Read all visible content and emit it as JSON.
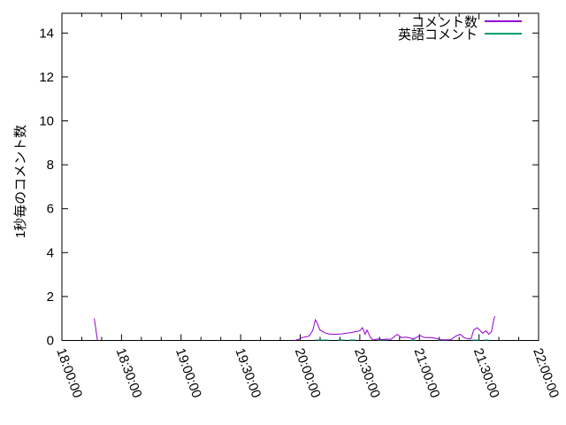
{
  "window": {
    "background": "#ffffff",
    "text_color": "#000000"
  },
  "chart_data": {
    "type": "line",
    "title": "",
    "xlabel": "",
    "ylabel": "1秒毎のコメント数",
    "x_axis": {
      "tick_labels": [
        "18:00:00",
        "18:30:00",
        "19:00:00",
        "19:30:00",
        "20:00:00",
        "20:30:00",
        "21:00:00",
        "21:30:00",
        "22:00:00"
      ],
      "range_minutes": [
        0,
        240
      ],
      "major_step_minutes": 30,
      "minor_step_minutes": 10,
      "label_rotation_deg": 70
    },
    "y_axis": {
      "tick_labels": [
        "0",
        "2",
        "4",
        "6",
        "8",
        "10",
        "12",
        "14"
      ],
      "tick_values": [
        0,
        2,
        4,
        6,
        8,
        10,
        12,
        14
      ],
      "range": [
        0,
        14.9
      ]
    },
    "grid": false,
    "legend_position": "top-right",
    "legend": [
      {
        "label": "コメント数",
        "color": "#9400d3"
      },
      {
        "label": "英語コメント",
        "color": "#009e73"
      }
    ],
    "series": [
      {
        "name": "コメント数",
        "color": "#9400d3",
        "segments": [
          [
            [
              16.3,
              1.0
            ],
            [
              17.9,
              0.0
            ]
          ],
          [
            [
              117.2,
              0.0
            ],
            [
              119.0,
              0.05
            ],
            [
              121.0,
              0.13
            ],
            [
              124.5,
              0.2
            ],
            [
              126.3,
              0.45
            ],
            [
              127.6,
              0.94
            ],
            [
              128.5,
              0.8
            ],
            [
              129.9,
              0.48
            ],
            [
              132.1,
              0.36
            ],
            [
              134.3,
              0.3
            ],
            [
              136.6,
              0.28
            ],
            [
              141.0,
              0.3
            ],
            [
              143.3,
              0.33
            ],
            [
              145.5,
              0.36
            ],
            [
              147.8,
              0.4
            ],
            [
              150.0,
              0.44
            ],
            [
              151.3,
              0.58
            ],
            [
              152.7,
              0.28
            ],
            [
              153.6,
              0.47
            ],
            [
              155.4,
              0.13
            ],
            [
              156.7,
              0.02
            ],
            [
              159.0,
              0.07
            ],
            [
              161.2,
              0.04
            ],
            [
              163.4,
              0.06
            ],
            [
              165.7,
              0.05
            ],
            [
              168.8,
              0.28
            ],
            [
              171.0,
              0.13
            ],
            [
              173.3,
              0.15
            ],
            [
              174.6,
              0.13
            ],
            [
              176.9,
              0.07
            ],
            [
              180.4,
              0.22
            ],
            [
              182.7,
              0.13
            ],
            [
              185.8,
              0.13
            ],
            [
              188.1,
              0.1
            ],
            [
              191.2,
              0.03
            ],
            [
              195.7,
              0.03
            ],
            [
              198.4,
              0.2
            ],
            [
              200.6,
              0.28
            ],
            [
              202.4,
              0.13
            ],
            [
              204.6,
              0.07
            ],
            [
              206.0,
              0.07
            ],
            [
              207.3,
              0.47
            ],
            [
              209.1,
              0.58
            ],
            [
              210.4,
              0.47
            ],
            [
              211.8,
              0.33
            ],
            [
              213.6,
              0.44
            ],
            [
              214.9,
              0.28
            ],
            [
              216.3,
              0.4
            ],
            [
              217.5,
              1.0
            ],
            [
              218.1,
              1.1
            ]
          ]
        ]
      },
      {
        "name": "英語コメント",
        "color": "#009e73",
        "segments": [
          [
            [
              127.6,
              0.02
            ],
            [
              134.3,
              0.02
            ]
          ],
          [
            [
              138.8,
              0.02
            ],
            [
              142.4,
              0.02
            ]
          ],
          [
            [
              144.6,
              0.02
            ],
            [
              147.8,
              0.02
            ]
          ],
          [
            [
              159.0,
              0.02
            ],
            [
              163.4,
              0.02
            ]
          ],
          [
            [
              175.9,
              0.02
            ],
            [
              178.1,
              0.02
            ]
          ],
          [
            [
              189.4,
              0.02
            ],
            [
              193.9,
              0.02
            ]
          ],
          [
            [
              206.9,
              0.02
            ],
            [
              210.4,
              0.02
            ]
          ],
          [
            [
              212.7,
              0.02
            ],
            [
              214.9,
              0.02
            ]
          ]
        ]
      }
    ],
    "axis_color": "#000000"
  }
}
